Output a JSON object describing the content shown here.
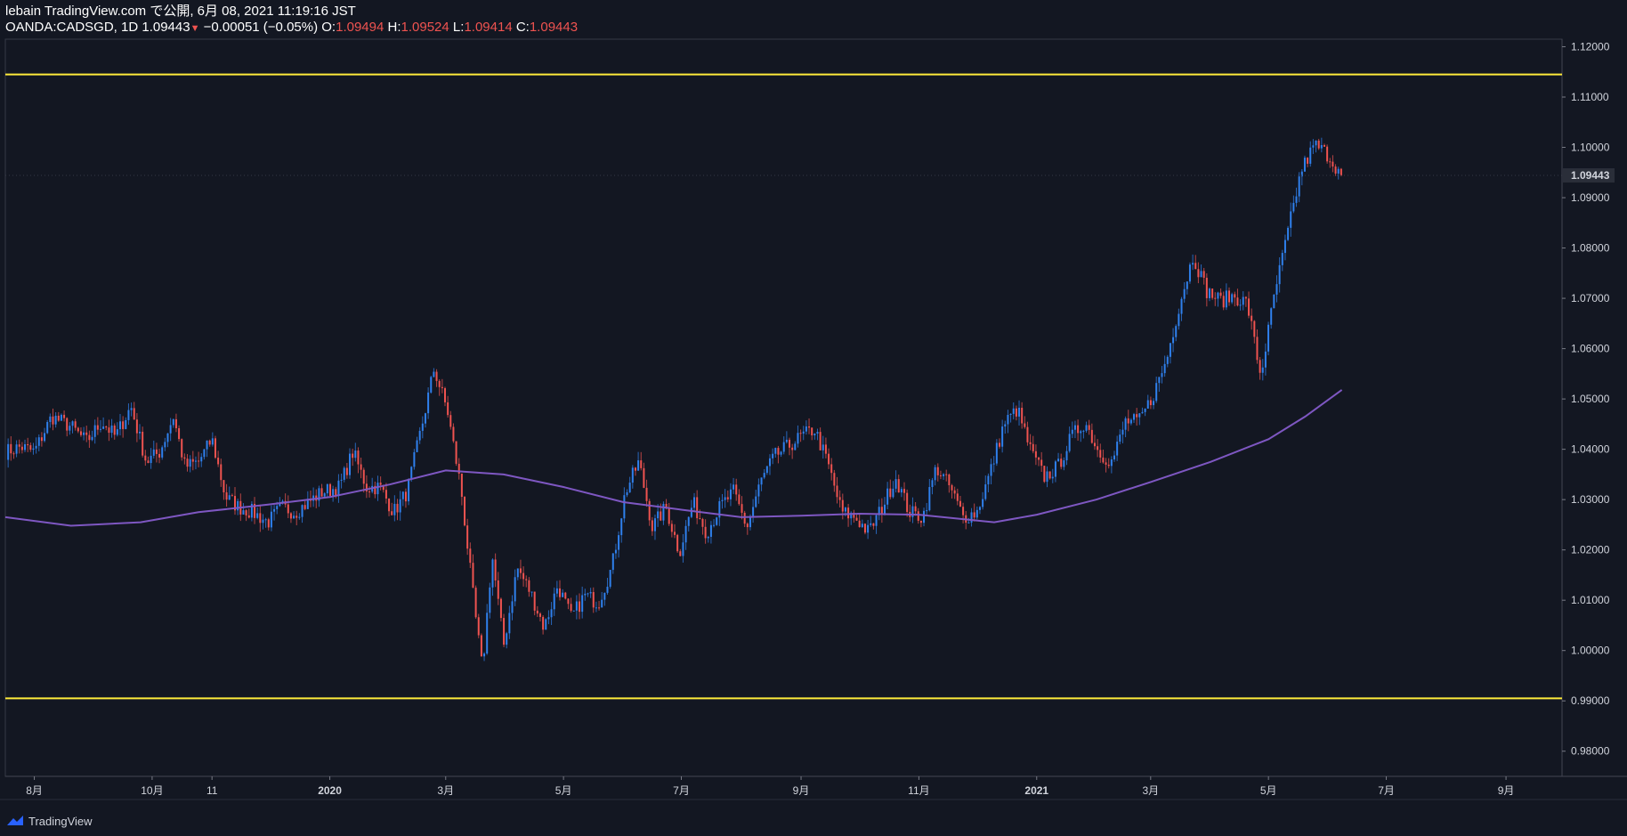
{
  "header": {
    "published": "lebain TradingView.com で公開, 6月 08, 2021 11:19:16 JST",
    "symbol_line": "OANDA:CADSGD, 1D 1.09443",
    "change": "−0.00051 (−0.05%)",
    "o_label": "O:",
    "o_value": "1.09494",
    "h_label": "H:",
    "h_value": "1.09524",
    "l_label": "L:",
    "l_value": "1.09414",
    "c_label": "C:",
    "c_value": "1.09443"
  },
  "footer": {
    "brand": "TradingView"
  },
  "colors": {
    "background": "#131722",
    "up": "#2f80ed",
    "down": "#ef5350",
    "ma": "#7e57c2",
    "hline": "#ffeb3b",
    "price_tag": "#2a2e39"
  },
  "chart_data": {
    "type": "candlestick",
    "symbol": "OANDA:CADSGD",
    "timeframe": "1D",
    "ylim": [
      0.975,
      1.1215
    ],
    "y_ticks": [
      "1.12000",
      "1.11000",
      "1.10000",
      "1.09000",
      "1.08000",
      "1.07000",
      "1.06000",
      "1.05000",
      "1.04000",
      "1.03000",
      "1.02000",
      "1.01000",
      "1.00000",
      "0.99000",
      "0.98000"
    ],
    "y_tick_values": [
      1.12,
      1.11,
      1.1,
      1.09,
      1.08,
      1.07,
      1.06,
      1.05,
      1.04,
      1.03,
      1.02,
      1.01,
      1.0,
      0.99,
      0.98
    ],
    "x_range": [
      "2019-07-17",
      "2021-09-30"
    ],
    "x_ticks": [
      {
        "label": "8月",
        "date": "2019-08-01",
        "bold": false
      },
      {
        "label": "10月",
        "date": "2019-10-01",
        "bold": false
      },
      {
        "label": "11",
        "date": "2019-11-01",
        "bold": false
      },
      {
        "label": "2020",
        "date": "2020-01-01",
        "bold": true
      },
      {
        "label": "3月",
        "date": "2020-03-01",
        "bold": false
      },
      {
        "label": "5月",
        "date": "2020-05-01",
        "bold": false
      },
      {
        "label": "7月",
        "date": "2020-07-01",
        "bold": false
      },
      {
        "label": "9月",
        "date": "2020-09-01",
        "bold": false
      },
      {
        "label": "11月",
        "date": "2020-11-01",
        "bold": false
      },
      {
        "label": "2021",
        "date": "2021-01-01",
        "bold": true
      },
      {
        "label": "3月",
        "date": "2021-03-01",
        "bold": false
      },
      {
        "label": "5月",
        "date": "2021-05-01",
        "bold": false
      },
      {
        "label": "7月",
        "date": "2021-07-01",
        "bold": false
      },
      {
        "label": "9月",
        "date": "2021-09-01",
        "bold": false
      }
    ],
    "last_price": "1.09443",
    "last_price_value": 1.09443,
    "horizontal_lines": [
      1.1145,
      0.9905
    ],
    "close_path": [
      {
        "date": "2019-07-17",
        "close": 1.0395
      },
      {
        "date": "2019-07-25",
        "close": 1.0405
      },
      {
        "date": "2019-08-01",
        "close": 1.0395
      },
      {
        "date": "2019-08-10",
        "close": 1.0465
      },
      {
        "date": "2019-08-20",
        "close": 1.0445
      },
      {
        "date": "2019-08-28",
        "close": 1.0415
      },
      {
        "date": "2019-09-05",
        "close": 1.0455
      },
      {
        "date": "2019-09-12",
        "close": 1.0425
      },
      {
        "date": "2019-09-20",
        "close": 1.0485
      },
      {
        "date": "2019-09-28",
        "close": 1.0375
      },
      {
        "date": "2019-10-05",
        "close": 1.0395
      },
      {
        "date": "2019-10-12",
        "close": 1.0465
      },
      {
        "date": "2019-10-18",
        "close": 1.0365
      },
      {
        "date": "2019-10-25",
        "close": 1.0375
      },
      {
        "date": "2019-11-01",
        "close": 1.042
      },
      {
        "date": "2019-11-08",
        "close": 1.0305
      },
      {
        "date": "2019-11-15",
        "close": 1.0285
      },
      {
        "date": "2019-11-22",
        "close": 1.0275
      },
      {
        "date": "2019-11-30",
        "close": 1.0255
      },
      {
        "date": "2019-12-07",
        "close": 1.0285
      },
      {
        "date": "2019-12-14",
        "close": 1.0275
      },
      {
        "date": "2019-12-21",
        "close": 1.0295
      },
      {
        "date": "2019-12-28",
        "close": 1.0315
      },
      {
        "date": "2020-01-06",
        "close": 1.0325
      },
      {
        "date": "2020-01-13",
        "close": 1.0395
      },
      {
        "date": "2020-01-20",
        "close": 1.0325
      },
      {
        "date": "2020-01-27",
        "close": 1.0325
      },
      {
        "date": "2020-02-03",
        "close": 1.0275
      },
      {
        "date": "2020-02-10",
        "close": 1.0315
      },
      {
        "date": "2020-02-17",
        "close": 1.0435
      },
      {
        "date": "2020-02-24",
        "close": 1.056
      },
      {
        "date": "2020-03-02",
        "close": 1.0475
      },
      {
        "date": "2020-03-09",
        "close": 1.032
      },
      {
        "date": "2020-03-16",
        "close": 1.008
      },
      {
        "date": "2020-03-20",
        "close": 0.996
      },
      {
        "date": "2020-03-25",
        "close": 1.019
      },
      {
        "date": "2020-03-31",
        "close": 1.001
      },
      {
        "date": "2020-04-07",
        "close": 1.0165
      },
      {
        "date": "2020-04-14",
        "close": 1.0115
      },
      {
        "date": "2020-04-21",
        "close": 1.0045
      },
      {
        "date": "2020-04-28",
        "close": 1.013
      },
      {
        "date": "2020-05-05",
        "close": 1.0065
      },
      {
        "date": "2020-05-12",
        "close": 1.011
      },
      {
        "date": "2020-05-19",
        "close": 1.0095
      },
      {
        "date": "2020-05-26",
        "close": 1.0165
      },
      {
        "date": "2020-06-02",
        "close": 1.0315
      },
      {
        "date": "2020-06-09",
        "close": 1.0375
      },
      {
        "date": "2020-06-16",
        "close": 1.0245
      },
      {
        "date": "2020-06-23",
        "close": 1.0285
      },
      {
        "date": "2020-06-30",
        "close": 1.0195
      },
      {
        "date": "2020-07-07",
        "close": 1.0295
      },
      {
        "date": "2020-07-14",
        "close": 1.0235
      },
      {
        "date": "2020-07-21",
        "close": 1.0285
      },
      {
        "date": "2020-07-28",
        "close": 1.0315
      },
      {
        "date": "2020-08-04",
        "close": 1.0245
      },
      {
        "date": "2020-08-11",
        "close": 1.0335
      },
      {
        "date": "2020-08-18",
        "close": 1.0385
      },
      {
        "date": "2020-08-25",
        "close": 1.0405
      },
      {
        "date": "2020-09-01",
        "close": 1.0425
      },
      {
        "date": "2020-09-08",
        "close": 1.044
      },
      {
        "date": "2020-09-15",
        "close": 1.037
      },
      {
        "date": "2020-09-22",
        "close": 1.0275
      },
      {
        "date": "2020-09-29",
        "close": 1.0265
      },
      {
        "date": "2020-10-06",
        "close": 1.0235
      },
      {
        "date": "2020-10-13",
        "close": 1.0285
      },
      {
        "date": "2020-10-20",
        "close": 1.0345
      },
      {
        "date": "2020-10-27",
        "close": 1.0275
      },
      {
        "date": "2020-11-03",
        "close": 1.0265
      },
      {
        "date": "2020-11-10",
        "close": 1.0365
      },
      {
        "date": "2020-11-17",
        "close": 1.0325
      },
      {
        "date": "2020-11-24",
        "close": 1.0265
      },
      {
        "date": "2020-12-01",
        "close": 1.0275
      },
      {
        "date": "2020-12-08",
        "close": 1.0355
      },
      {
        "date": "2020-12-15",
        "close": 1.045
      },
      {
        "date": "2020-12-22",
        "close": 1.048
      },
      {
        "date": "2020-12-29",
        "close": 1.0395
      },
      {
        "date": "2021-01-05",
        "close": 1.0345
      },
      {
        "date": "2021-01-12",
        "close": 1.0365
      },
      {
        "date": "2021-01-19",
        "close": 1.0425
      },
      {
        "date": "2021-01-26",
        "close": 1.0455
      },
      {
        "date": "2021-02-02",
        "close": 1.0395
      },
      {
        "date": "2021-02-09",
        "close": 1.0375
      },
      {
        "date": "2021-02-16",
        "close": 1.0455
      },
      {
        "date": "2021-02-23",
        "close": 1.0455
      },
      {
        "date": "2021-03-02",
        "close": 1.0505
      },
      {
        "date": "2021-03-09",
        "close": 1.0575
      },
      {
        "date": "2021-03-16",
        "close": 1.069
      },
      {
        "date": "2021-03-23",
        "close": 1.0785
      },
      {
        "date": "2021-03-30",
        "close": 1.0715
      },
      {
        "date": "2021-04-06",
        "close": 1.0695
      },
      {
        "date": "2021-04-13",
        "close": 1.0705
      },
      {
        "date": "2021-04-20",
        "close": 1.069
      },
      {
        "date": "2021-04-27",
        "close": 1.0545
      },
      {
        "date": "2021-05-04",
        "close": 1.0705
      },
      {
        "date": "2021-05-11",
        "close": 1.083
      },
      {
        "date": "2021-05-18",
        "close": 1.0955
      },
      {
        "date": "2021-05-25",
        "close": 1.1005
      },
      {
        "date": "2021-06-01",
        "close": 1.0985
      },
      {
        "date": "2021-06-08",
        "close": 1.09443
      }
    ],
    "ma_line": [
      {
        "date": "2019-07-17",
        "value": 1.0265
      },
      {
        "date": "2019-08-20",
        "value": 1.0248
      },
      {
        "date": "2019-09-25",
        "value": 1.0255
      },
      {
        "date": "2019-10-25",
        "value": 1.0275
      },
      {
        "date": "2019-11-30",
        "value": 1.029
      },
      {
        "date": "2020-01-01",
        "value": 1.0305
      },
      {
        "date": "2020-02-01",
        "value": 1.033
      },
      {
        "date": "2020-03-01",
        "value": 1.0358
      },
      {
        "date": "2020-03-31",
        "value": 1.035
      },
      {
        "date": "2020-05-01",
        "value": 1.0325
      },
      {
        "date": "2020-06-01",
        "value": 1.0295
      },
      {
        "date": "2020-07-01",
        "value": 1.028
      },
      {
        "date": "2020-08-01",
        "value": 1.0265
      },
      {
        "date": "2020-09-01",
        "value": 1.0268
      },
      {
        "date": "2020-10-01",
        "value": 1.0272
      },
      {
        "date": "2020-11-01",
        "value": 1.027
      },
      {
        "date": "2020-12-10",
        "value": 1.0255
      },
      {
        "date": "2021-01-01",
        "value": 1.027
      },
      {
        "date": "2021-02-01",
        "value": 1.03
      },
      {
        "date": "2021-03-01",
        "value": 1.0335
      },
      {
        "date": "2021-04-01",
        "value": 1.0375
      },
      {
        "date": "2021-05-01",
        "value": 1.042
      },
      {
        "date": "2021-05-20",
        "value": 1.0465
      },
      {
        "date": "2021-06-08",
        "value": 1.0518
      }
    ]
  }
}
